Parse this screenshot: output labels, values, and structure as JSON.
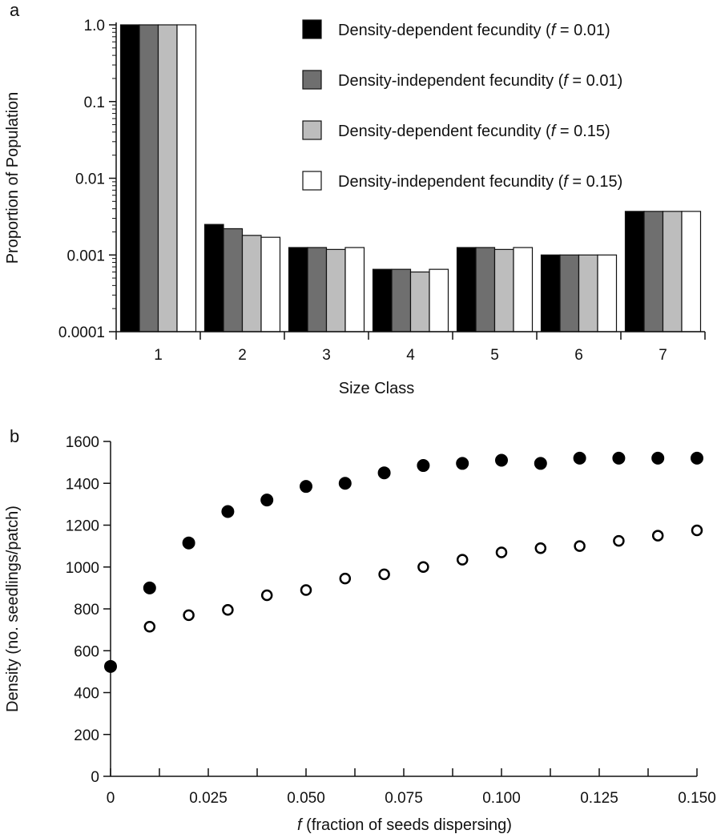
{
  "chart_data": [
    {
      "panel_label": "a",
      "type": "bar",
      "xlabel": "Size Class",
      "ylabel": "Proportion of Population",
      "yscale": "log",
      "ylim": [
        0.0001,
        1.0
      ],
      "ytick_labels": [
        "0.0001",
        "0.001",
        "0.01",
        "0.1",
        "1.0"
      ],
      "ytick_values": [
        0.0001,
        0.001,
        0.01,
        0.1,
        1.0
      ],
      "categories": [
        "1",
        "2",
        "3",
        "4",
        "5",
        "6",
        "7"
      ],
      "legend_position": "top-right",
      "series": [
        {
          "name_prefix": "Density-dependent fecundity (",
          "name_var": "f",
          "name_suffix": " = 0.01)",
          "color": "#000000",
          "values": [
            1.0,
            0.0025,
            0.00125,
            0.00065,
            0.00125,
            0.001,
            0.0037
          ]
        },
        {
          "name_prefix": "Density-independent fecundity (",
          "name_var": "f",
          "name_suffix": " = 0.01)",
          "color": "#6f6f6f",
          "values": [
            1.0,
            0.0022,
            0.00125,
            0.00065,
            0.00125,
            0.001,
            0.0037
          ]
        },
        {
          "name_prefix": "Density-dependent fecundity (",
          "name_var": "f",
          "name_suffix": " = 0.15)",
          "color": "#bdbdbd",
          "values": [
            1.0,
            0.0018,
            0.00118,
            0.0006,
            0.00118,
            0.001,
            0.0037
          ]
        },
        {
          "name_prefix": "Density-independent fecundity (",
          "name_var": "f",
          "name_suffix": " = 0.15)",
          "color": "#ffffff",
          "values": [
            1.0,
            0.0017,
            0.00125,
            0.00065,
            0.00125,
            0.001,
            0.0037
          ]
        }
      ]
    },
    {
      "panel_label": "b",
      "type": "scatter",
      "ylabel": "Density (no. seedlings/patch)",
      "xlabel_var": "f",
      "xlabel_rest": " (fraction of seeds dispersing)",
      "xlim": [
        0,
        0.15
      ],
      "ylim": [
        0,
        1600
      ],
      "xtick_labels": [
        "0",
        "0.025",
        "0.050",
        "0.075",
        "0.100",
        "0.125",
        "0.150"
      ],
      "xtick_values": [
        0,
        0.025,
        0.05,
        0.075,
        0.1,
        0.125,
        0.15
      ],
      "ytick_labels": [
        "0",
        "200",
        "400",
        "600",
        "800",
        "1000",
        "1200",
        "1400",
        "1600"
      ],
      "ytick_values": [
        0,
        200,
        400,
        600,
        800,
        1000,
        1200,
        1400,
        1600
      ],
      "series": [
        {
          "style": "filled",
          "x": [
            0,
            0.01,
            0.02,
            0.03,
            0.04,
            0.05,
            0.06,
            0.07,
            0.08,
            0.09,
            0.1,
            0.11,
            0.12,
            0.13,
            0.14,
            0.15
          ],
          "y": [
            525,
            900,
            1115,
            1265,
            1320,
            1385,
            1400,
            1450,
            1485,
            1495,
            1510,
            1495,
            1520,
            1520,
            1520,
            1520
          ]
        },
        {
          "style": "open",
          "x": [
            0.01,
            0.02,
            0.03,
            0.04,
            0.05,
            0.06,
            0.07,
            0.08,
            0.09,
            0.1,
            0.11,
            0.12,
            0.13,
            0.14,
            0.15
          ],
          "y": [
            715,
            770,
            795,
            865,
            890,
            945,
            965,
            1000,
            1035,
            1070,
            1090,
            1100,
            1125,
            1150,
            1175
          ]
        }
      ]
    }
  ]
}
